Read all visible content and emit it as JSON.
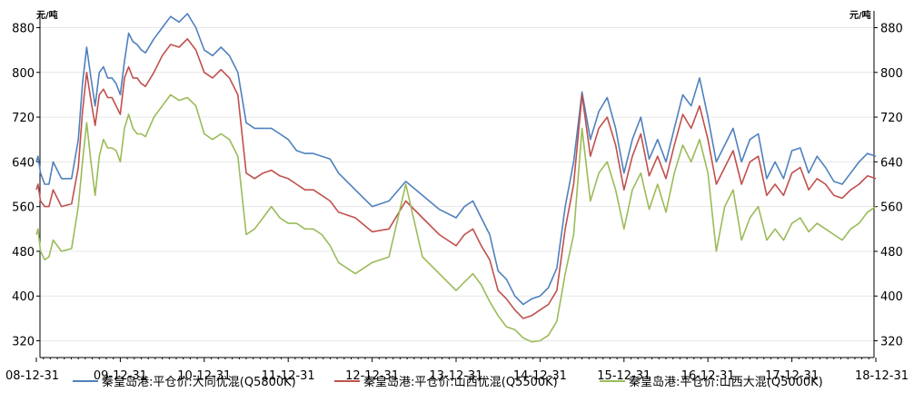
{
  "chart_data": {
    "type": "line",
    "y_unit_left": "元/吨",
    "y_unit_right": "元/吨",
    "ylim": [
      290,
      910
    ],
    "y_ticks": [
      320,
      400,
      480,
      560,
      640,
      720,
      800,
      880
    ],
    "x_ticks": [
      "08-12-31",
      "09-12-31",
      "10-12-31",
      "11-12-31",
      "12-12-31",
      "13-12-31",
      "14-12-31",
      "15-12-31",
      "16-12-31",
      "17-12-31",
      "18-12-31"
    ],
    "grid": true,
    "legend_position": "bottom",
    "series": [
      {
        "name": "秦皇岛港:平仓价:大同优混(Q5800K)",
        "color": "#4f81bd",
        "x": [
          0,
          0.02,
          0.05,
          0.1,
          0.15,
          0.2,
          0.3,
          0.42,
          0.5,
          0.55,
          0.6,
          0.65,
          0.7,
          0.75,
          0.8,
          0.85,
          0.9,
          0.95,
          1.0,
          1.05,
          1.1,
          1.15,
          1.2,
          1.25,
          1.3,
          1.4,
          1.5,
          1.6,
          1.7,
          1.8,
          1.9,
          2.0,
          2.1,
          2.2,
          2.3,
          2.4,
          2.5,
          2.6,
          2.7,
          2.8,
          2.9,
          3.0,
          3.1,
          3.2,
          3.3,
          3.4,
          3.5,
          3.6,
          3.8,
          4.0,
          4.2,
          4.4,
          4.6,
          4.8,
          5.0,
          5.1,
          5.2,
          5.3,
          5.4,
          5.5,
          5.6,
          5.7,
          5.8,
          5.9,
          6.0,
          6.1,
          6.2,
          6.3,
          6.4,
          6.5,
          6.6,
          6.7,
          6.8,
          6.9,
          7.0,
          7.1,
          7.2,
          7.3,
          7.4,
          7.5,
          7.6,
          7.7,
          7.8,
          7.9,
          8.0,
          8.1,
          8.2,
          8.3,
          8.4,
          8.5,
          8.6,
          8.7,
          8.8,
          8.9,
          9.0,
          9.1,
          9.2,
          9.3,
          9.4,
          9.5,
          9.6,
          9.7,
          9.8,
          9.9,
          10.0
        ],
        "y": [
          640,
          650,
          620,
          600,
          600,
          640,
          610,
          610,
          680,
          780,
          845,
          790,
          740,
          800,
          810,
          790,
          790,
          780,
          760,
          820,
          870,
          855,
          850,
          840,
          835,
          860,
          880,
          900,
          890,
          905,
          880,
          840,
          830,
          845,
          830,
          800,
          710,
          700,
          700,
          700,
          690,
          680,
          660,
          655,
          655,
          650,
          645,
          620,
          590,
          560,
          570,
          605,
          580,
          555,
          540,
          560,
          570,
          540,
          510,
          445,
          430,
          400,
          385,
          395,
          400,
          415,
          450,
          560,
          640,
          765,
          680,
          730,
          755,
          700,
          620,
          680,
          720,
          645,
          680,
          640,
          700,
          760,
          740,
          790,
          720,
          640,
          670,
          700,
          640,
          680,
          690,
          610,
          640,
          610,
          660,
          665,
          620,
          650,
          630,
          605,
          600,
          620,
          640,
          655,
          650
        ],
        "y_note": "values read off the chart"
      },
      {
        "name": "秦皇岛港:平仓价:山西优混(Q5500K)",
        "color": "#c0504d",
        "x": [
          0,
          0.02,
          0.05,
          0.1,
          0.15,
          0.2,
          0.3,
          0.42,
          0.5,
          0.55,
          0.6,
          0.65,
          0.7,
          0.75,
          0.8,
          0.85,
          0.9,
          0.95,
          1.0,
          1.05,
          1.1,
          1.15,
          1.2,
          1.25,
          1.3,
          1.4,
          1.5,
          1.6,
          1.7,
          1.8,
          1.9,
          2.0,
          2.1,
          2.2,
          2.3,
          2.4,
          2.5,
          2.6,
          2.7,
          2.8,
          2.9,
          3.0,
          3.1,
          3.2,
          3.3,
          3.4,
          3.5,
          3.6,
          3.8,
          4.0,
          4.2,
          4.4,
          4.6,
          4.8,
          5.0,
          5.1,
          5.2,
          5.3,
          5.4,
          5.5,
          5.6,
          5.7,
          5.8,
          5.9,
          6.0,
          6.1,
          6.2,
          6.3,
          6.4,
          6.5,
          6.6,
          6.7,
          6.8,
          6.9,
          7.0,
          7.1,
          7.2,
          7.3,
          7.4,
          7.5,
          7.6,
          7.7,
          7.8,
          7.9,
          8.0,
          8.1,
          8.2,
          8.3,
          8.4,
          8.5,
          8.6,
          8.7,
          8.8,
          8.9,
          9.0,
          9.1,
          9.2,
          9.3,
          9.4,
          9.5,
          9.6,
          9.7,
          9.8,
          9.9,
          10.0
        ],
        "y": [
          590,
          600,
          570,
          560,
          560,
          590,
          560,
          565,
          630,
          730,
          800,
          750,
          705,
          760,
          770,
          755,
          755,
          740,
          725,
          790,
          810,
          790,
          790,
          780,
          775,
          800,
          830,
          850,
          845,
          860,
          840,
          800,
          790,
          805,
          790,
          760,
          620,
          610,
          620,
          625,
          615,
          610,
          600,
          590,
          590,
          580,
          570,
          550,
          540,
          515,
          520,
          570,
          540,
          510,
          490,
          510,
          520,
          490,
          465,
          410,
          395,
          375,
          360,
          365,
          375,
          385,
          410,
          520,
          600,
          760,
          650,
          700,
          720,
          670,
          590,
          650,
          690,
          615,
          650,
          610,
          670,
          725,
          700,
          740,
          680,
          600,
          630,
          660,
          600,
          640,
          650,
          580,
          600,
          580,
          620,
          630,
          590,
          610,
          600,
          580,
          575,
          590,
          600,
          615,
          610
        ],
        "y_note": "values read off the chart"
      },
      {
        "name": "秦皇岛港:平仓价:山西大混(Q5000K)",
        "color": "#9bbb59",
        "x": [
          0,
          0.02,
          0.05,
          0.1,
          0.15,
          0.2,
          0.3,
          0.42,
          0.5,
          0.55,
          0.6,
          0.65,
          0.7,
          0.75,
          0.8,
          0.85,
          0.9,
          0.95,
          1.0,
          1.05,
          1.1,
          1.15,
          1.2,
          1.25,
          1.3,
          1.4,
          1.5,
          1.6,
          1.7,
          1.8,
          1.9,
          2.0,
          2.1,
          2.2,
          2.3,
          2.4,
          2.5,
          2.6,
          2.7,
          2.8,
          2.9,
          3.0,
          3.1,
          3.2,
          3.3,
          3.4,
          3.5,
          3.6,
          3.8,
          4.0,
          4.2,
          4.4,
          4.6,
          4.8,
          5.0,
          5.1,
          5.2,
          5.3,
          5.4,
          5.5,
          5.6,
          5.7,
          5.8,
          5.9,
          6.0,
          6.1,
          6.2,
          6.3,
          6.4,
          6.5,
          6.6,
          6.7,
          6.8,
          6.9,
          7.0,
          7.1,
          7.2,
          7.3,
          7.4,
          7.5,
          7.6,
          7.7,
          7.8,
          7.9,
          8.0,
          8.1,
          8.2,
          8.3,
          8.4,
          8.5,
          8.6,
          8.7,
          8.8,
          8.9,
          9.0,
          9.1,
          9.2,
          9.3,
          9.4,
          9.5,
          9.6,
          9.7,
          9.8,
          9.9,
          10.0
        ],
        "y": [
          510,
          520,
          480,
          465,
          470,
          500,
          480,
          485,
          560,
          640,
          710,
          640,
          580,
          650,
          680,
          665,
          665,
          660,
          640,
          700,
          725,
          700,
          690,
          690,
          685,
          720,
          740,
          760,
          750,
          755,
          740,
          690,
          680,
          690,
          680,
          650,
          510,
          520,
          540,
          560,
          540,
          530,
          530,
          520,
          520,
          510,
          490,
          460,
          440,
          460,
          470,
          600,
          470,
          440,
          410,
          425,
          440,
          420,
          390,
          365,
          345,
          340,
          325,
          318,
          320,
          330,
          355,
          440,
          510,
          700,
          570,
          620,
          640,
          590,
          520,
          590,
          620,
          555,
          600,
          550,
          620,
          670,
          640,
          680,
          620,
          480,
          560,
          590,
          500,
          540,
          560,
          500,
          520,
          500,
          530,
          540,
          515,
          530,
          520,
          510,
          500,
          520,
          530,
          550,
          560
        ],
        "y_note": "values read off the chart"
      }
    ]
  }
}
